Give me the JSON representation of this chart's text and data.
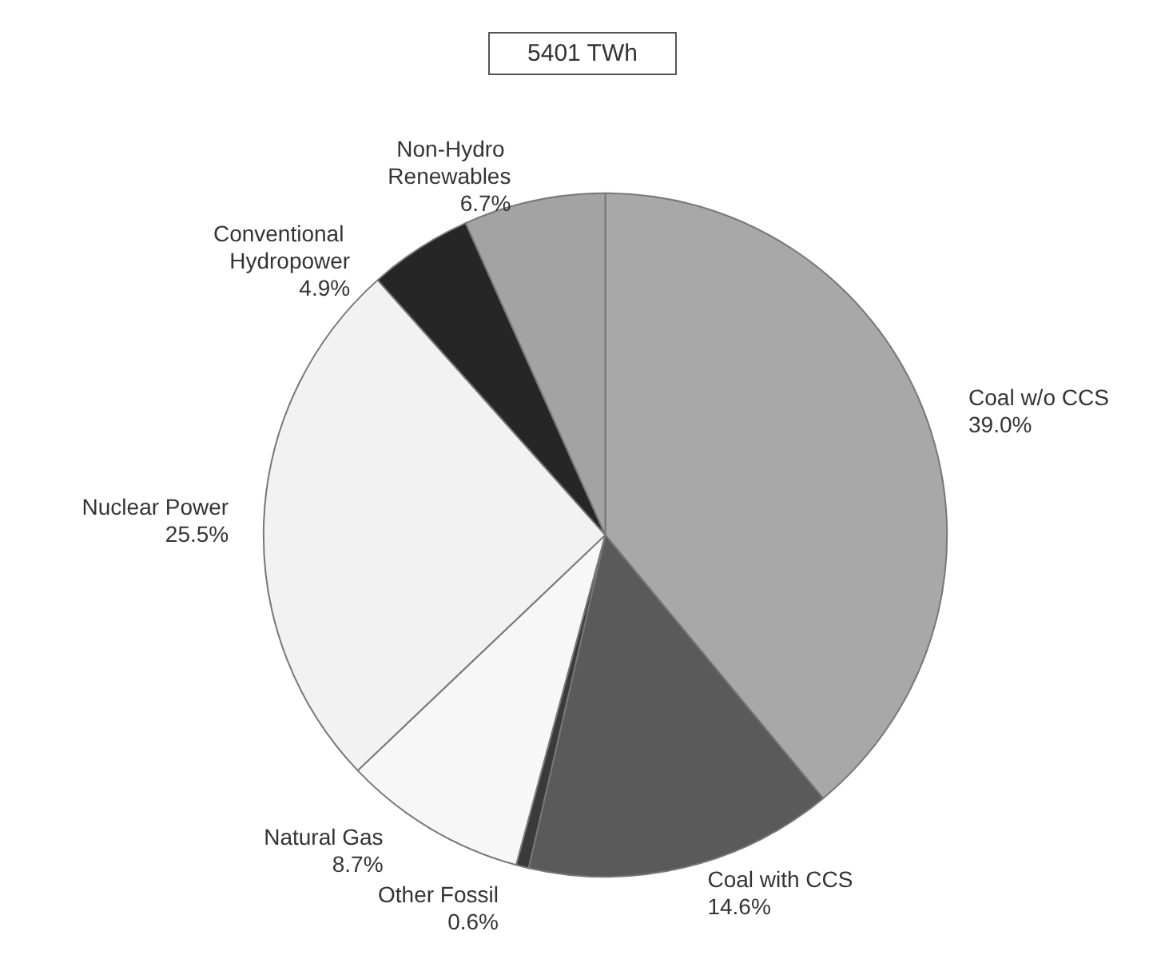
{
  "chart_data": {
    "type": "pie",
    "title": "5401 TWh",
    "categories": [
      "Coal w/o CCS",
      "Coal with CCS",
      "Other Fossil",
      "Natural Gas",
      "Nuclear Power",
      "Conventional Hydropower",
      "Non-Hydro Renewables"
    ],
    "values": [
      39.0,
      14.6,
      0.6,
      8.7,
      25.5,
      4.9,
      6.7
    ],
    "value_labels": [
      "39.0%",
      "14.6%",
      "0.6%",
      "8.7%",
      "25.5%",
      "4.9%",
      "6.7%"
    ],
    "colors": [
      "#a8a8a8",
      "#5a5a5a",
      "#3a3a3a",
      "#f7f7f7",
      "#f2f2f2",
      "#262626",
      "#a3a3a3"
    ],
    "legend": false
  }
}
